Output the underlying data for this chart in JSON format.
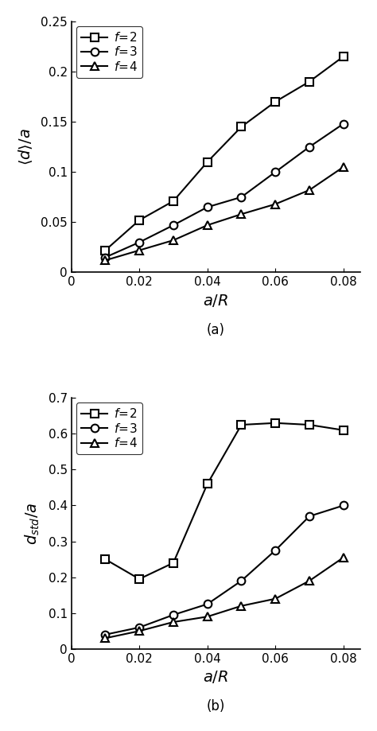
{
  "x_values": [
    0.01,
    0.02,
    0.03,
    0.04,
    0.05,
    0.06,
    0.07,
    0.08
  ],
  "panel_a": {
    "panel_label": "(a)",
    "ylabel": "$\\langle d \\rangle /a$",
    "xlabel": "$a/R$",
    "ylim": [
      0,
      0.25
    ],
    "yticks": [
      0,
      0.05,
      0.1,
      0.15,
      0.2,
      0.25
    ],
    "ytick_labels": [
      "0",
      "0.05",
      "0.1",
      "0.15",
      "0.2",
      "0.25"
    ],
    "xlim": [
      0,
      0.085
    ],
    "xticks": [
      0,
      0.02,
      0.04,
      0.06,
      0.08
    ],
    "xtick_labels": [
      "0",
      "0.02",
      "0.04",
      "0.06",
      "0.08"
    ],
    "f2": [
      0.022,
      0.052,
      0.071,
      0.11,
      0.145,
      0.17,
      0.19,
      0.215
    ],
    "f3": [
      0.015,
      0.03,
      0.047,
      0.065,
      0.075,
      0.1,
      0.125,
      0.148
    ],
    "f4": [
      0.012,
      0.022,
      0.032,
      0.047,
      0.058,
      0.068,
      0.082,
      0.105
    ]
  },
  "panel_b": {
    "panel_label": "(b)",
    "ylabel": "$d_{std}/a$",
    "xlabel": "$a/R$",
    "ylim": [
      0,
      0.7
    ],
    "yticks": [
      0,
      0.1,
      0.2,
      0.3,
      0.4,
      0.5,
      0.6,
      0.7
    ],
    "ytick_labels": [
      "0",
      "0.1",
      "0.2",
      "0.3",
      "0.4",
      "0.5",
      "0.6",
      "0.7"
    ],
    "xlim": [
      0,
      0.085
    ],
    "xticks": [
      0,
      0.02,
      0.04,
      0.06,
      0.08
    ],
    "xtick_labels": [
      "0",
      "0.02",
      "0.04",
      "0.06",
      "0.08"
    ],
    "f2": [
      0.25,
      0.195,
      0.24,
      0.46,
      0.625,
      0.63,
      0.625,
      0.61
    ],
    "f3": [
      0.04,
      0.06,
      0.095,
      0.125,
      0.19,
      0.275,
      0.37,
      0.4
    ],
    "f4": [
      0.03,
      0.05,
      0.075,
      0.09,
      0.12,
      0.14,
      0.19,
      0.255
    ]
  },
  "legend_labels": [
    "$f\\!=\\!2$",
    "$f\\!=\\!3$",
    "$f\\!=\\!4$"
  ],
  "line_color": "#000000",
  "marker_f2": "s",
  "marker_f3": "o",
  "marker_f4": "^",
  "markersize": 7,
  "linewidth": 1.5
}
